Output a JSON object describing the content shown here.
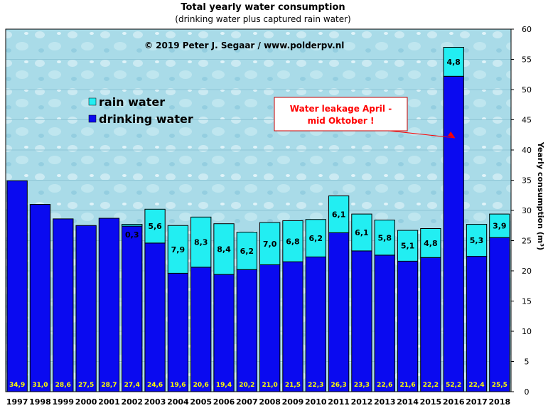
{
  "title": "Total yearly water consumption",
  "subtitle": "(drinking  water plus captured rain  water)",
  "copyright": "© 2019  Peter  J.  Segaar  /  www.polderpv.nl",
  "annotation": {
    "line1": "Water leakage April  -",
    "line2": "mid Oktober !"
  },
  "colors": {
    "drinking": "#0a0af0",
    "rain": "#22eef2",
    "background": "#a9dbe8",
    "annotation": "#ff0000",
    "data_label": "#ffff00"
  },
  "chart_data": {
    "type": "bar",
    "stacked": true,
    "categories": [
      "1997",
      "1998",
      "1999",
      "2000",
      "2001",
      "2002",
      "2003",
      "2004",
      "2005",
      "2006",
      "2007",
      "2008",
      "2009",
      "2010",
      "2011",
      "2012",
      "2013",
      "2014",
      "2015",
      "2016",
      "2017",
      "2018"
    ],
    "series": [
      {
        "name": "drinking water",
        "values": [
          34.9,
          31.0,
          28.6,
          27.5,
          28.7,
          27.4,
          24.6,
          19.6,
          20.6,
          19.4,
          20.2,
          21.0,
          21.5,
          22.3,
          26.3,
          23.3,
          22.6,
          21.6,
          22.2,
          52.2,
          22.4,
          25.5
        ],
        "labels": [
          "34,9",
          "31,0",
          "28,6",
          "27,5",
          "28,7",
          "27,4",
          "24,6",
          "19,6",
          "20,6",
          "19,4",
          "20,2",
          "21,0",
          "21,5",
          "22,3",
          "26,3",
          "23,3",
          "22,6",
          "21,6",
          "22,2",
          "52,2",
          "22,4",
          "25,5"
        ]
      },
      {
        "name": "rain water",
        "values": [
          0,
          0,
          0,
          0,
          0,
          0.3,
          5.6,
          7.9,
          8.3,
          8.4,
          6.2,
          7.0,
          6.8,
          6.2,
          6.1,
          6.1,
          5.8,
          5.1,
          4.8,
          4.8,
          5.3,
          3.9
        ],
        "labels": [
          "",
          "",
          "",
          "",
          "",
          "0,3",
          "5,6",
          "7,9",
          "8,3",
          "8,4",
          "6,2",
          "7,0",
          "6,8",
          "6,2",
          "6,1",
          "6,1",
          "5,8",
          "5,1",
          "4,8",
          "4,8",
          "5,3",
          "3,9"
        ]
      }
    ],
    "ylabel": "Yearly consumption (m³)",
    "ylim": [
      0,
      60
    ],
    "yticks": [
      0,
      5,
      10,
      15,
      20,
      25,
      30,
      35,
      40,
      45,
      50,
      55,
      60
    ],
    "legend": [
      "rain water",
      "drinking water"
    ],
    "legend_position": "top-left",
    "y_axis_side": "right"
  }
}
